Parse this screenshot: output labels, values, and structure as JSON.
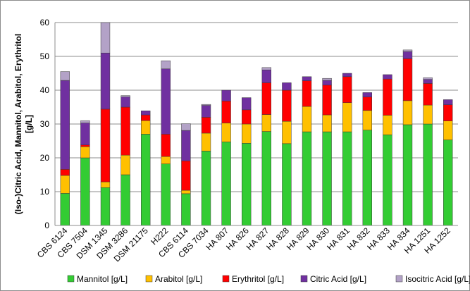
{
  "chart_data": {
    "type": "bar",
    "stacked": true,
    "ylabel_line1": "(Iso-)Citric Acid, Mannitol, Arabitol, Erythritol",
    "ylabel_line2": "[g/L]",
    "ylim": [
      0,
      60
    ],
    "yticks": [
      0,
      10,
      20,
      30,
      40,
      50,
      60
    ],
    "grid": true,
    "legend_position": "bottom",
    "categories": [
      "CBS 6124",
      "CBS 7504",
      "DSM 1345",
      "DSM 3286",
      "DSM 21175",
      "H222",
      "CBS 6114",
      "CBS 7034",
      "HA 807",
      "HA 826",
      "HA 827",
      "HA 828",
      "HA 829",
      "HA 830",
      "HA 831",
      "HA 832",
      "HA 833",
      "HA 834",
      "HA 1251",
      "HA 1252"
    ],
    "series": [
      {
        "name": "Mannitol [g/L]",
        "color": "#33cc33",
        "values": [
          9.5,
          20,
          11.2,
          15,
          27,
          18.2,
          9.4,
          22,
          24.7,
          24.3,
          27.8,
          24.2,
          27.7,
          27.7,
          27.7,
          28.2,
          26.8,
          29.8,
          30,
          25.3
        ]
      },
      {
        "name": "Arabitol [g/L]",
        "color": "#ffc000",
        "values": [
          5.3,
          3.3,
          1.7,
          5.8,
          4,
          2.2,
          1,
          5.3,
          5.6,
          5.7,
          5,
          6.6,
          7.5,
          5,
          8.6,
          5.8,
          5.8,
          7.1,
          5.6,
          5.6
        ]
      },
      {
        "name": "Erythritol [g/L]",
        "color": "#ff0000",
        "values": [
          1.8,
          0.5,
          21.5,
          14.2,
          1.7,
          6.6,
          8.7,
          4.7,
          6.5,
          4.2,
          9.4,
          9.2,
          7.6,
          8.8,
          7.7,
          4,
          10.7,
          12.4,
          6.4,
          4.8
        ]
      },
      {
        "name": "Citric Acid [g/L]",
        "color": "#7030a0",
        "values": [
          26.3,
          6.5,
          16.6,
          3,
          1.2,
          19.3,
          9,
          3.5,
          3.2,
          3.6,
          3.8,
          2.2,
          1.2,
          1.4,
          1,
          1.3,
          1.3,
          2.1,
          1.2,
          1.5
        ]
      },
      {
        "name": "Isocitric Acid [g/L]",
        "color": "#b3a2c7",
        "values": [
          2.6,
          0.7,
          9,
          0.4,
          0,
          2.4,
          2,
          0.3,
          0,
          0,
          0.7,
          0,
          0,
          0.6,
          0,
          0,
          0,
          0.5,
          0.5,
          0
        ]
      }
    ]
  }
}
